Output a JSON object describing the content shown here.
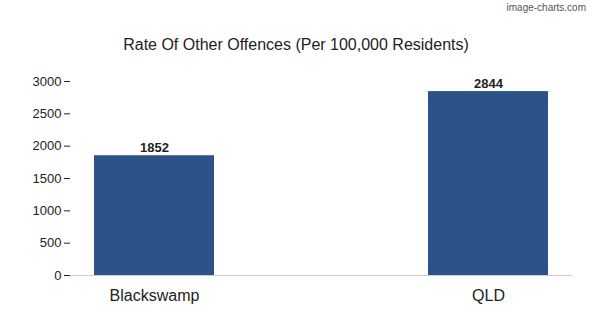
{
  "chart_data": {
    "type": "bar",
    "title": "Rate Of Other Offences (Per 100,000 Residents)",
    "annotations": [
      "image-charts.com"
    ],
    "categories": [
      "Blackswamp",
      "QLD"
    ],
    "values": [
      1852,
      2844
    ],
    "color": "#2b5289",
    "ylim": [
      0,
      3000
    ],
    "yticks": [
      0,
      500,
      1000,
      1500,
      2000,
      2500,
      3000
    ],
    "grid": false,
    "data_labels": true
  }
}
